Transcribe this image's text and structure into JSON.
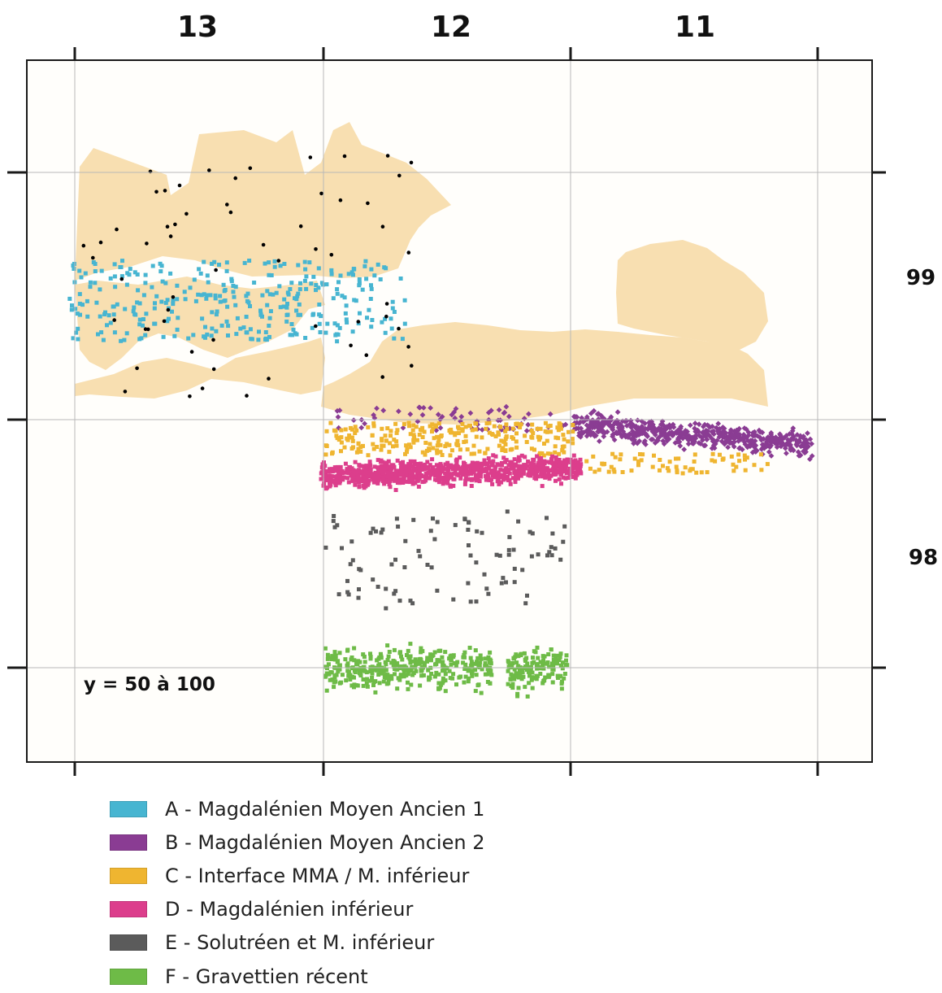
{
  "chart_data": {
    "type": "scatter",
    "title": "",
    "x_tick_labels": [
      "13",
      "12",
      "11"
    ],
    "y_tick_labels": [
      "99",
      "98"
    ],
    "annotation": "y = 50 à 100",
    "grid": true,
    "legend_position": "bottom-left",
    "zone_color": "#F8DFB1",
    "series": [
      {
        "key": "A",
        "name": "A - Magdalénien Moyen Ancien 1",
        "color": "#47B5D1",
        "marker": "square",
        "count": 330
      },
      {
        "key": "B",
        "name": "B - Magdalénien Moyen Ancien 2",
        "color": "#8A3C93",
        "marker": "diamond",
        "count": 640
      },
      {
        "key": "C",
        "name": "C - Interface MMA / M. inférieur",
        "color": "#EFB530",
        "marker": "square",
        "count": 320
      },
      {
        "key": "D",
        "name": "D - Magdalénien inférieur",
        "color": "#DC3E8C",
        "marker": "square",
        "count": 900
      },
      {
        "key": "E",
        "name": "E - Solutréen et M. inférieur",
        "color": "#5B5B5B",
        "marker": "square",
        "count": 95
      },
      {
        "key": "F",
        "name": "F - Gravettien récent",
        "color": "#6EBB47",
        "marker": "square",
        "count": 520
      },
      {
        "key": "O",
        "name": "",
        "color": "#000000",
        "marker": "dot",
        "count": 60
      }
    ]
  }
}
